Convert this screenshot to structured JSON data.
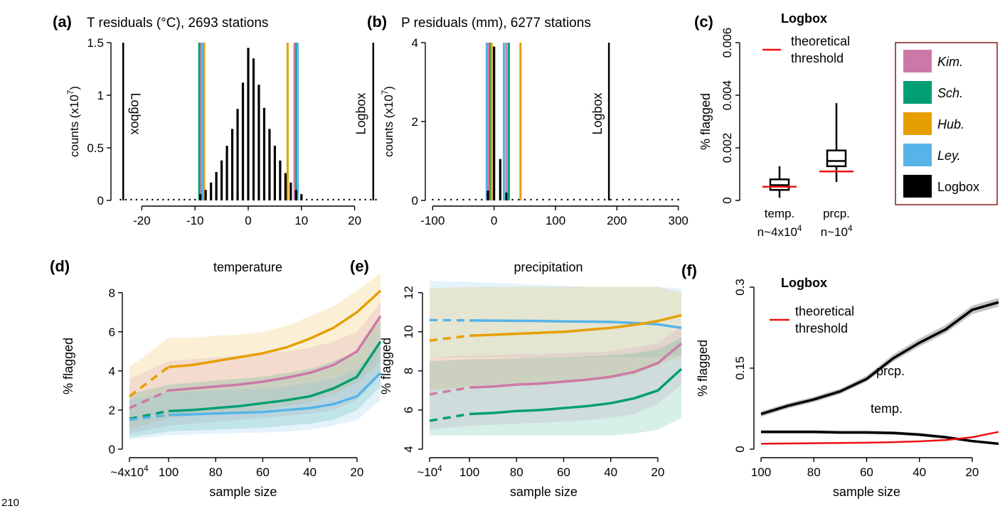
{
  "figure": {
    "page_number": "210"
  },
  "colors": {
    "kim": "#cc79a7",
    "sch": "#009e73",
    "hub": "#e69f00",
    "ley": "#56b4e9",
    "logbox": "#000000",
    "threshold": "#ee1111",
    "band_gray": "#b0b0b0"
  },
  "chart_data": [
    {
      "id": "a",
      "panel_label": "(a)",
      "type": "bar",
      "title": "T residuals (°C), 2693 stations",
      "ylabel_main": "counts (x10",
      "ylabel_sup": "7",
      "ylabel_end": ")",
      "xlim": [
        -25,
        25
      ],
      "ylim": [
        0,
        1.5
      ],
      "xticks": [
        -20,
        -10,
        0,
        10,
        20
      ],
      "xtick_labels": [
        "-20",
        "-10",
        "0",
        "10",
        "20"
      ],
      "yticks": [
        0,
        0.5,
        1,
        1.5
      ],
      "ytick_labels": [
        "0",
        "0.5",
        "1",
        "1.5"
      ],
      "bins": [
        -24,
        -23,
        -22,
        -21,
        -20,
        -19,
        -18,
        -17,
        -16,
        -15,
        -14,
        -13,
        -12,
        -11,
        -10,
        -9,
        -8,
        -7,
        -6,
        -5,
        -4,
        -3,
        -2,
        -1,
        0,
        1,
        2,
        3,
        4,
        5,
        6,
        7,
        8,
        9,
        10,
        11,
        12,
        13,
        14,
        15,
        16,
        17,
        18,
        19,
        20,
        21,
        22,
        23,
        24
      ],
      "counts": [
        0.005,
        0.005,
        0.005,
        0.005,
        0.005,
        0.005,
        0.005,
        0.005,
        0.005,
        0.005,
        0.005,
        0.005,
        0.01,
        0.015,
        0.03,
        0.06,
        0.1,
        0.17,
        0.27,
        0.38,
        0.52,
        0.68,
        0.87,
        1.12,
        1.45,
        1.35,
        1.1,
        0.88,
        0.68,
        0.52,
        0.38,
        0.26,
        0.17,
        0.1,
        0.06,
        0.03,
        0.015,
        0.01,
        0.005,
        0.005,
        0.005,
        0.005,
        0.005,
        0.005,
        0.005,
        0.005,
        0.005,
        0.005,
        0.005
      ],
      "thresholds": [
        {
          "method": "sch",
          "values": [
            -9.2,
            9.0
          ]
        },
        {
          "method": "kim",
          "values": [
            -8.8,
            8.7
          ]
        },
        {
          "method": "hub",
          "values": [
            -8.3,
            7.4
          ]
        },
        {
          "method": "ley",
          "values": [
            -8.6,
            9.3
          ]
        },
        {
          "method": "logbox",
          "values": [
            -23.5,
            23.5
          ]
        }
      ],
      "line_labels": [
        {
          "text": "Logbox",
          "x": -22,
          "rotate": 90
        },
        {
          "text": "Logbox",
          "x": 22,
          "rotate": -90
        }
      ]
    },
    {
      "id": "b",
      "panel_label": "(b)",
      "type": "bar",
      "title": "P residuals (mm), 6277 stations",
      "ylabel_main": "counts (x10",
      "ylabel_sup": "7",
      "ylabel_end": ")",
      "xlim": [
        -105,
        305
      ],
      "ylim": [
        0,
        4
      ],
      "xticks": [
        -100,
        0,
        100,
        200,
        300
      ],
      "xtick_labels": [
        "-100",
        "0",
        "100",
        "200",
        "300"
      ],
      "yticks": [
        0,
        2,
        4
      ],
      "ytick_labels": [
        "0",
        "2",
        "4"
      ],
      "bins": [
        -100,
        -90,
        -80,
        -70,
        -60,
        -50,
        -40,
        -30,
        -20,
        -10,
        0,
        10,
        20,
        30,
        40,
        50,
        60,
        70,
        80,
        90,
        100,
        110,
        120,
        130,
        140,
        150,
        160,
        170,
        180,
        190,
        200,
        210,
        220,
        230,
        240,
        250,
        260,
        270,
        280,
        290,
        300
      ],
      "counts": [
        0.01,
        0.01,
        0.01,
        0.01,
        0.01,
        0.01,
        0.01,
        0.01,
        0.01,
        0.25,
        3.9,
        1.05,
        0.2,
        0.05,
        0.01,
        0.01,
        0.01,
        0.01,
        0.01,
        0.01,
        0.01,
        0.01,
        0.01,
        0.01,
        0.01,
        0.01,
        0.01,
        0.01,
        0.01,
        0.01,
        0.01,
        0.01,
        0.01,
        0.01,
        0.01,
        0.01,
        0.01,
        0.01,
        0.01,
        0.01,
        0.01
      ],
      "thresholds": [
        {
          "method": "ley",
          "values": [
            -12,
            16
          ]
        },
        {
          "method": "kim",
          "values": [
            -9,
            20
          ]
        },
        {
          "method": "sch",
          "values": [
            -6,
            24
          ]
        },
        {
          "method": "hub",
          "values": [
            -4,
            43
          ]
        },
        {
          "method": "logbox",
          "values": [
            187
          ]
        }
      ],
      "line_labels": [
        {
          "text": "Logbox",
          "x": 175,
          "rotate": -90
        }
      ]
    },
    {
      "id": "c",
      "panel_label": "(c)",
      "type": "boxplot",
      "title": "Logbox",
      "ylabel": "% flagged",
      "ylim": [
        0,
        0.006
      ],
      "yticks": [
        0,
        0.002,
        0.004,
        0.006
      ],
      "ytick_labels": [
        "0",
        "0.002",
        "0.004",
        "0.006"
      ],
      "boxes": [
        {
          "label": "temp.",
          "n_main": "n~4x10",
          "n_sup": "4",
          "min": 0.0001,
          "q1": 0.0004,
          "median": 0.00058,
          "q3": 0.0008,
          "max": 0.0013,
          "threshold": 0.00052
        },
        {
          "label": "prcp.",
          "n_main": "n~10",
          "n_sup": "4",
          "min": 0.0007,
          "q1": 0.0013,
          "median": 0.0015,
          "q3": 0.0019,
          "max": 0.0037,
          "threshold": 0.0011
        }
      ],
      "legend_lines": [
        "theoretical",
        "threshold"
      ]
    },
    {
      "id": "d",
      "panel_label": "(d)",
      "type": "line",
      "title": "temperature",
      "xlabel": "sample size",
      "ylabel": "% flagged",
      "ylim": [
        0,
        8.5
      ],
      "xtick_labels": [
        "~4x10",
        "100",
        "80",
        "60",
        "40",
        "20"
      ],
      "first_tick_sup": "4",
      "yticks": [
        0,
        2,
        4,
        6,
        8
      ],
      "ytick_labels": [
        "0",
        "2",
        "4",
        "6",
        "8"
      ],
      "x": [
        "~4x10^4",
        100,
        90,
        80,
        70,
        60,
        50,
        40,
        30,
        20,
        10
      ],
      "series": [
        {
          "method": "hub",
          "values": [
            2.7,
            4.2,
            4.3,
            4.5,
            4.7,
            4.9,
            5.2,
            5.65,
            6.2,
            7.0,
            8.1
          ],
          "band_low": [
            1.0,
            1.6,
            1.7,
            1.8,
            1.9,
            2.0,
            2.2,
            2.4,
            2.8,
            3.4,
            4.5
          ],
          "band_high": [
            4.2,
            5.7,
            5.7,
            5.8,
            5.85,
            6.0,
            6.3,
            6.8,
            7.3,
            8.1,
            9.0
          ]
        },
        {
          "method": "kim",
          "values": [
            2.1,
            3.0,
            3.1,
            3.2,
            3.3,
            3.45,
            3.65,
            3.9,
            4.3,
            5.0,
            6.8
          ],
          "band_low": [
            0.8,
            1.2,
            1.3,
            1.4,
            1.5,
            1.6,
            1.7,
            1.8,
            2.0,
            2.5,
            3.8
          ],
          "band_high": [
            3.6,
            4.5,
            4.6,
            4.7,
            4.8,
            4.9,
            5.0,
            5.2,
            5.5,
            6.0,
            7.5
          ]
        },
        {
          "method": "sch",
          "values": [
            1.55,
            1.95,
            2.0,
            2.1,
            2.2,
            2.35,
            2.5,
            2.7,
            3.1,
            3.7,
            5.5
          ],
          "band_low": [
            0.6,
            0.9,
            0.95,
            1.0,
            1.05,
            1.1,
            1.2,
            1.3,
            1.5,
            2.0,
            3.2
          ],
          "band_high": [
            2.8,
            3.3,
            3.4,
            3.5,
            3.6,
            3.7,
            3.9,
            4.1,
            4.5,
            5.0,
            6.6
          ]
        },
        {
          "method": "ley",
          "values": [
            1.5,
            1.75,
            1.78,
            1.82,
            1.86,
            1.9,
            2.0,
            2.1,
            2.3,
            2.7,
            3.9
          ],
          "band_low": [
            0.5,
            0.7,
            0.75,
            0.8,
            0.82,
            0.85,
            0.9,
            1.0,
            1.2,
            1.5,
            2.5
          ],
          "band_high": [
            2.5,
            2.9,
            2.95,
            3.0,
            3.05,
            3.1,
            3.2,
            3.4,
            3.6,
            4.1,
            5.3
          ]
        }
      ]
    },
    {
      "id": "e",
      "panel_label": "(e)",
      "type": "line",
      "title": "precipitation",
      "xlabel": "sample size",
      "ylabel": "% flagged",
      "ylim": [
        4,
        12.5
      ],
      "xtick_labels": [
        "~10",
        "100",
        "80",
        "60",
        "40",
        "20"
      ],
      "first_tick_sup": "4",
      "yticks": [
        4,
        6,
        8,
        10,
        12
      ],
      "ytick_labels": [
        "4",
        "6",
        "8",
        "10",
        "12"
      ],
      "x": [
        "~10^4",
        100,
        90,
        80,
        70,
        60,
        50,
        40,
        30,
        20,
        10
      ],
      "series": [
        {
          "method": "ley",
          "values": [
            10.6,
            10.58,
            10.57,
            10.56,
            10.55,
            10.53,
            10.52,
            10.5,
            10.45,
            10.38,
            10.2
          ],
          "band_low": [
            8.7,
            8.7,
            8.7,
            8.7,
            8.7,
            8.7,
            8.7,
            8.7,
            8.7,
            8.7,
            8.8
          ],
          "band_high": [
            12.6,
            12.55,
            12.5,
            12.45,
            12.4,
            12.35,
            12.3,
            12.3,
            12.3,
            12.3,
            12.2
          ]
        },
        {
          "method": "hub",
          "values": [
            9.55,
            9.8,
            9.85,
            9.9,
            9.95,
            10.0,
            10.1,
            10.2,
            10.35,
            10.55,
            10.85
          ],
          "band_low": [
            7.0,
            7.2,
            7.2,
            7.3,
            7.3,
            7.4,
            7.5,
            7.6,
            7.8,
            8.3,
            8.8
          ],
          "band_high": [
            12.2,
            12.3,
            12.3,
            12.3,
            12.3,
            12.3,
            12.3,
            12.3,
            12.3,
            12.3,
            12.0
          ]
        },
        {
          "method": "kim",
          "values": [
            6.8,
            7.15,
            7.2,
            7.3,
            7.35,
            7.45,
            7.55,
            7.7,
            7.95,
            8.4,
            9.4
          ],
          "band_low": [
            5.0,
            5.2,
            5.25,
            5.3,
            5.35,
            5.4,
            5.5,
            5.6,
            5.8,
            6.3,
            7.3
          ],
          "band_high": [
            8.7,
            8.8,
            8.8,
            8.85,
            8.85,
            8.9,
            8.95,
            9.0,
            9.2,
            9.4,
            10.3
          ]
        },
        {
          "method": "sch",
          "values": [
            5.45,
            5.8,
            5.85,
            5.95,
            6.0,
            6.1,
            6.2,
            6.35,
            6.6,
            7.0,
            8.1
          ],
          "band_low": [
            4.7,
            4.7,
            4.7,
            4.7,
            4.7,
            4.7,
            4.7,
            4.7,
            4.8,
            5.0,
            5.6
          ],
          "band_high": [
            8.5,
            8.6,
            8.6,
            8.65,
            8.7,
            8.7,
            8.75,
            8.8,
            8.9,
            9.1,
            9.7
          ]
        }
      ]
    },
    {
      "id": "f",
      "panel_label": "(f)",
      "type": "line",
      "title": "Logbox",
      "xlabel": "sample size",
      "ylabel": "% flagged",
      "ylim": [
        0,
        0.3
      ],
      "x": [
        100,
        90,
        80,
        70,
        60,
        50,
        40,
        30,
        20,
        10
      ],
      "xtick_labels": [
        "100",
        "80",
        "60",
        "40",
        "20"
      ],
      "yticks": [
        0,
        0.15,
        0.3
      ],
      "ytick_labels": [
        "0",
        "0.15",
        "0.3"
      ],
      "series": [
        {
          "method": "logbox",
          "label": "prcp.",
          "values": [
            0.065,
            0.08,
            0.092,
            0.107,
            0.13,
            0.168,
            0.197,
            0.222,
            0.258,
            0.272
          ],
          "band_low": [
            0.06,
            0.075,
            0.087,
            0.102,
            0.125,
            0.162,
            0.19,
            0.215,
            0.25,
            0.264
          ],
          "band_high": [
            0.07,
            0.085,
            0.097,
            0.112,
            0.136,
            0.175,
            0.205,
            0.23,
            0.266,
            0.28
          ]
        },
        {
          "method": "logbox",
          "label": "temp.",
          "values": [
            0.032,
            0.032,
            0.032,
            0.031,
            0.031,
            0.03,
            0.027,
            0.022,
            0.015,
            0.01
          ],
          "band_low": [
            0.029,
            0.029,
            0.029,
            0.028,
            0.028,
            0.027,
            0.024,
            0.019,
            0.013,
            0.008
          ],
          "band_high": [
            0.035,
            0.035,
            0.035,
            0.034,
            0.034,
            0.033,
            0.03,
            0.025,
            0.017,
            0.012
          ]
        },
        {
          "method": "threshold",
          "label": "",
          "values": [
            0.01,
            0.0105,
            0.011,
            0.0115,
            0.012,
            0.013,
            0.0145,
            0.017,
            0.022,
            0.032
          ]
        }
      ],
      "legend_lines": [
        "theoretical",
        "threshold"
      ]
    }
  ],
  "legend": {
    "items": [
      {
        "method": "kim",
        "label": "Kim.",
        "italic": true
      },
      {
        "method": "sch",
        "label": "Sch.",
        "italic": true
      },
      {
        "method": "hub",
        "label": "Hub.",
        "italic": true
      },
      {
        "method": "ley",
        "label": "Ley.",
        "italic": true
      },
      {
        "method": "logbox",
        "label": "Logbox",
        "italic": false
      }
    ]
  }
}
